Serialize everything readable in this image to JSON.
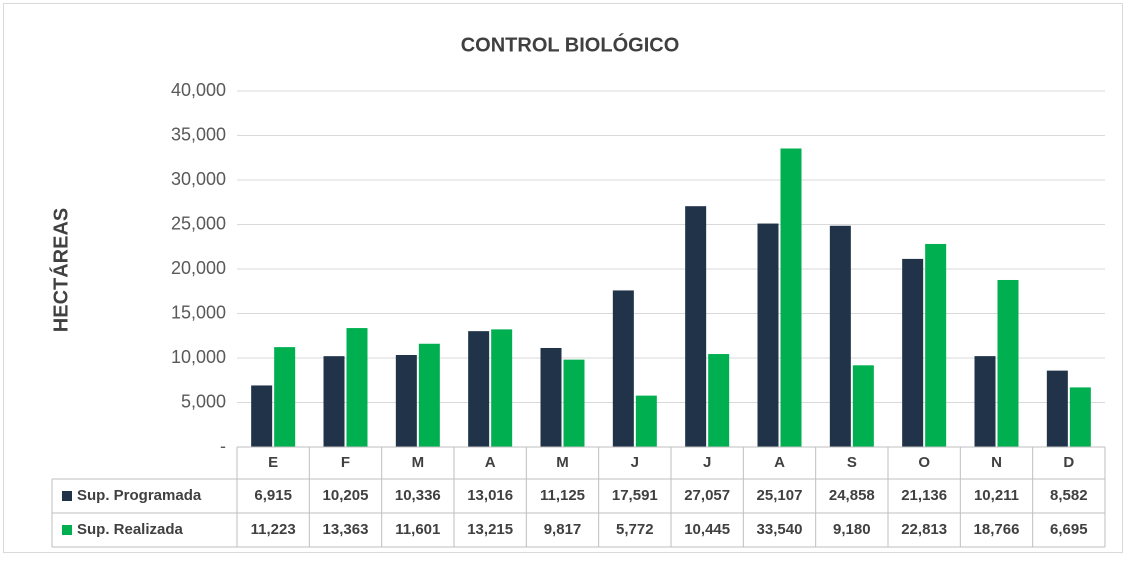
{
  "chart_data": {
    "type": "bar",
    "title": "CONTROL BIOLÓGICO",
    "y_label": "HECTÁREAS",
    "categories": [
      "E",
      "F",
      "M",
      "A",
      "M",
      "J",
      "J",
      "A",
      "S",
      "O",
      "N",
      "D"
    ],
    "series": [
      {
        "name": "Sup. Programada",
        "color": "#203349",
        "values": [
          6915,
          10205,
          10336,
          13016,
          11125,
          17591,
          27057,
          25107,
          24858,
          21136,
          10211,
          8582
        ],
        "value_labels": [
          "6,915",
          "10,205",
          "10,336",
          "13,016",
          "11,125",
          "17,591",
          "27,057",
          "25,107",
          "24,858",
          "21,136",
          "10,211",
          "8,582"
        ]
      },
      {
        "name": "Sup. Realizada",
        "color": "#00b050",
        "values": [
          11223,
          13363,
          11601,
          13215,
          9817,
          5772,
          10445,
          33540,
          9180,
          22813,
          18766,
          6695
        ],
        "value_labels": [
          "11,223",
          "13,363",
          "11,601",
          "13,215",
          "9,817",
          "5,772",
          "10,445",
          "33,540",
          "9,180",
          "22,813",
          "18,766",
          "6,695"
        ]
      }
    ],
    "ylim": [
      0,
      40000
    ],
    "yticks": [
      {
        "value": 0,
        "label": "-"
      },
      {
        "value": 5000,
        "label": "5,000"
      },
      {
        "value": 10000,
        "label": "10,000"
      },
      {
        "value": 15000,
        "label": "15,000"
      },
      {
        "value": 20000,
        "label": "20,000"
      },
      {
        "value": 25000,
        "label": "25,000"
      },
      {
        "value": 30000,
        "label": "30,000"
      },
      {
        "value": 35000,
        "label": "35,000"
      },
      {
        "value": 40000,
        "label": "40,000"
      }
    ],
    "grid": true,
    "legend": "table"
  }
}
